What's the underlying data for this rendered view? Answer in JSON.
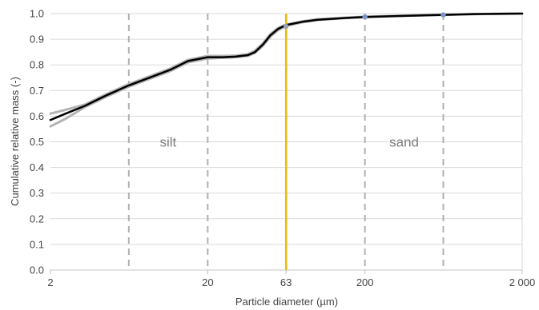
{
  "chart_data": {
    "type": "line",
    "title": "",
    "xlabel": "Particle diameter (µm)",
    "ylabel": "Cumulative relative mass (-)",
    "x_scale": "log",
    "xlim": [
      2,
      2000
    ],
    "ylim": [
      0,
      1.0
    ],
    "x_ticks": [
      2,
      20,
      63,
      200,
      2000
    ],
    "x_tick_labels": [
      "2",
      "20",
      "63",
      "200",
      "2 000"
    ],
    "y_ticks": [
      0.0,
      0.1,
      0.2,
      0.3,
      0.4,
      0.5,
      0.6,
      0.7,
      0.8,
      0.9,
      1.0
    ],
    "y_tick_labels": [
      "0.0",
      "0.1",
      "0.2",
      "0.3",
      "0.4",
      "0.5",
      "0.6",
      "0.7",
      "0.8",
      "0.9",
      "1.0"
    ],
    "grid": "horizontal",
    "vertical_dashed_lines": [
      6.3,
      20,
      200,
      630
    ],
    "highlight_line": {
      "x": 63,
      "color": "#f5b800"
    },
    "region_labels": [
      {
        "text": "silt",
        "x": 11.2,
        "y": 0.5
      },
      {
        "text": "sand",
        "x": 355,
        "y": 0.5
      }
    ],
    "series": [
      {
        "color": "#000000",
        "x": [
          2,
          2.5,
          3.3,
          4.5,
          6.3,
          8.5,
          11.5,
          15,
          20,
          25,
          30,
          36,
          40,
          45,
          50,
          56,
          63,
          80,
          100,
          150,
          200,
          300,
          630,
          1000,
          2000
        ],
        "y": [
          0.585,
          0.61,
          0.64,
          0.68,
          0.72,
          0.75,
          0.78,
          0.815,
          0.83,
          0.83,
          0.832,
          0.838,
          0.85,
          0.88,
          0.915,
          0.94,
          0.955,
          0.968,
          0.976,
          0.983,
          0.987,
          0.99,
          0.995,
          0.998,
          1.0
        ]
      },
      {
        "color": "#b4b4b4",
        "x": [
          2,
          2.5,
          3.3,
          4.5,
          6.3,
          8.5,
          11.5,
          15,
          20,
          25,
          30,
          36,
          40,
          45,
          50,
          56,
          63,
          80,
          100,
          150,
          200,
          300,
          630,
          1000,
          2000
        ],
        "y": [
          0.56,
          0.59,
          0.635,
          0.675,
          0.715,
          0.745,
          0.775,
          0.81,
          0.825,
          0.828,
          0.83,
          0.835,
          0.847,
          0.875,
          0.91,
          0.935,
          0.952,
          0.966,
          0.975,
          0.982,
          0.986,
          0.99,
          0.995,
          0.998,
          1.0
        ]
      },
      {
        "color": "#b4b4b4",
        "x": [
          2,
          2.5,
          3.3,
          4.5,
          6.3,
          8.5,
          11.5,
          15,
          20,
          25,
          30,
          36,
          40,
          45,
          50,
          56,
          63,
          80,
          100,
          150,
          200,
          300,
          630,
          1000,
          2000
        ],
        "y": [
          0.61,
          0.625,
          0.645,
          0.685,
          0.725,
          0.755,
          0.785,
          0.82,
          0.835,
          0.835,
          0.836,
          0.842,
          0.855,
          0.885,
          0.92,
          0.944,
          0.957,
          0.97,
          0.978,
          0.984,
          0.988,
          0.991,
          0.996,
          0.998,
          1.0
        ]
      }
    ],
    "markers": [
      {
        "x": 63,
        "y": 0.95,
        "color": "#9aa0b8"
      },
      {
        "x": 200,
        "y": 0.987,
        "color": "#7f93cc"
      },
      {
        "x": 630,
        "y": 0.995,
        "color": "#7f93cc"
      }
    ],
    "colors": {
      "grid": "#d9d9d9",
      "dashed": "#b0b0b0",
      "text": "#444444",
      "region_text": "#7f7f7f"
    }
  }
}
